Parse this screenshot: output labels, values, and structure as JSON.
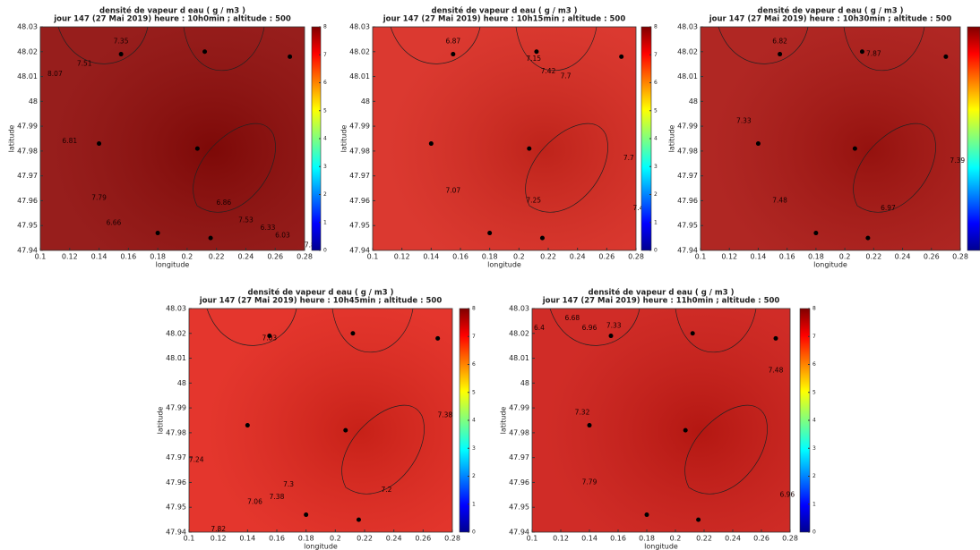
{
  "chart_data": [
    {
      "type": "contour",
      "title": "densité de vapeur d eau ( g / m3 )",
      "subtitle": "jour 147 (27 Mai 2019) heure : 10h0min ; altitude : 500",
      "x_label": "longitude",
      "y_label": "latitude",
      "xlim": [
        0.1,
        0.28
      ],
      "ylim": [
        47.94,
        48.03
      ],
      "xticks": [
        0.1,
        0.12,
        0.14,
        0.16,
        0.18,
        0.2,
        0.22,
        0.24,
        0.26,
        0.28
      ],
      "yticks": [
        47.94,
        47.95,
        47.96,
        47.97,
        47.98,
        47.99,
        48,
        48.01,
        48.02,
        48.03
      ],
      "clim": [
        0,
        8
      ],
      "cticks": [
        0,
        1,
        2,
        3,
        4,
        5,
        6,
        7,
        8
      ],
      "color": "#8e0a08",
      "points": {
        "x": [
          0.155,
          0.212,
          0.27,
          0.14,
          0.207,
          0.18,
          0.216
        ],
        "y": [
          48.019,
          48.02,
          48.018,
          47.983,
          47.981,
          47.947,
          47.945
        ]
      },
      "contour_labels": [
        {
          "label": "7.35",
          "x": 0.155,
          "y": 48.024
        },
        {
          "label": "7.51",
          "x": 0.13,
          "y": 48.015
        },
        {
          "label": "8.07",
          "x": 0.11,
          "y": 48.011
        },
        {
          "label": "6.81",
          "x": 0.12,
          "y": 47.984
        },
        {
          "label": "7.79",
          "x": 0.14,
          "y": 47.961
        },
        {
          "label": "6.66",
          "x": 0.15,
          "y": 47.951
        },
        {
          "label": "6.86",
          "x": 0.225,
          "y": 47.959
        },
        {
          "label": "7.53",
          "x": 0.24,
          "y": 47.952
        },
        {
          "label": "6.33",
          "x": 0.255,
          "y": 47.949
        },
        {
          "label": "6.03",
          "x": 0.265,
          "y": 47.946
        },
        {
          "label": "7.81",
          "x": 0.285,
          "y": 47.942
        }
      ]
    },
    {
      "type": "contour",
      "title": "densité de vapeur d eau ( g / m3 )",
      "subtitle": "jour 147 (27 Mai 2019) heure : 10h15min ; altitude : 500",
      "x_label": "longitude",
      "y_label": "latitude",
      "xlim": [
        0.1,
        0.28
      ],
      "ylim": [
        47.94,
        48.03
      ],
      "xticks": [
        0.1,
        0.12,
        0.14,
        0.16,
        0.18,
        0.2,
        0.22,
        0.24,
        0.26,
        0.28
      ],
      "yticks": [
        47.94,
        47.95,
        47.96,
        47.97,
        47.98,
        47.99,
        48,
        48.01,
        48.02,
        48.03
      ],
      "clim": [
        0,
        8
      ],
      "cticks": [
        0,
        1,
        2,
        3,
        4,
        5,
        6,
        7,
        8
      ],
      "color": "#d8281e",
      "points": {
        "x": [
          0.155,
          0.212,
          0.27,
          0.14,
          0.207,
          0.18,
          0.216
        ],
        "y": [
          48.019,
          48.02,
          48.018,
          47.983,
          47.981,
          47.947,
          47.945
        ]
      },
      "contour_labels": [
        {
          "label": "6.87",
          "x": 0.155,
          "y": 48.024
        },
        {
          "label": "7.15",
          "x": 0.21,
          "y": 48.017
        },
        {
          "label": "7.42",
          "x": 0.22,
          "y": 48.012
        },
        {
          "label": "7.7",
          "x": 0.232,
          "y": 48.01
        },
        {
          "label": "7.7",
          "x": 0.275,
          "y": 47.977
        },
        {
          "label": "7.07",
          "x": 0.155,
          "y": 47.964
        },
        {
          "label": "7.25",
          "x": 0.21,
          "y": 47.96
        },
        {
          "label": "7.42",
          "x": 0.283,
          "y": 47.957
        }
      ]
    },
    {
      "type": "contour",
      "title": "densité de vapeur d eau ( g / m3 )",
      "subtitle": "jour 147 (27 Mai 2019) heure : 10h30min ; altitude : 500",
      "x_label": "longitude",
      "y_label": "latitude",
      "xlim": [
        0.1,
        0.28
      ],
      "ylim": [
        47.94,
        48.03
      ],
      "xticks": [
        0.1,
        0.12,
        0.14,
        0.16,
        0.18,
        0.2,
        0.22,
        0.24,
        0.26,
        0.28
      ],
      "yticks": [
        47.94,
        47.95,
        47.96,
        47.97,
        47.98,
        47.99,
        48,
        48.01,
        48.02,
        48.03
      ],
      "clim": [
        0,
        8
      ],
      "color": "#a91410",
      "points": {
        "x": [
          0.155,
          0.212,
          0.27,
          0.14,
          0.207,
          0.18,
          0.216
        ],
        "y": [
          48.019,
          48.02,
          48.018,
          47.983,
          47.981,
          47.947,
          47.945
        ]
      },
      "contour_labels": [
        {
          "label": "6.82",
          "x": 0.155,
          "y": 48.024
        },
        {
          "label": "7.87",
          "x": 0.22,
          "y": 48.019
        },
        {
          "label": "7.33",
          "x": 0.13,
          "y": 47.992
        },
        {
          "label": "7.39",
          "x": 0.278,
          "y": 47.976
        },
        {
          "label": "7.48",
          "x": 0.155,
          "y": 47.96
        },
        {
          "label": "6.97",
          "x": 0.23,
          "y": 47.957
        }
      ]
    },
    {
      "type": "contour",
      "title": "densité de vapeur d eau ( g / m3 )",
      "subtitle": "jour 147 (27 Mai 2019) heure : 10h45min ; altitude : 500",
      "x_label": "longitude",
      "y_label": "latitude",
      "xlim": [
        0.1,
        0.28
      ],
      "ylim": [
        47.94,
        48.03
      ],
      "xticks": [
        0.1,
        0.12,
        0.14,
        0.16,
        0.18,
        0.2,
        0.22,
        0.24,
        0.26,
        0.28
      ],
      "yticks": [
        47.94,
        47.95,
        47.96,
        47.97,
        47.98,
        47.99,
        48,
        48.01,
        48.02,
        48.03
      ],
      "clim": [
        0,
        8
      ],
      "cticks": [
        0,
        1,
        2,
        3,
        4,
        5,
        6,
        7,
        8
      ],
      "color": "#e2251b",
      "points": {
        "x": [
          0.155,
          0.212,
          0.27,
          0.14,
          0.207,
          0.18,
          0.216
        ],
        "y": [
          48.019,
          48.02,
          48.018,
          47.983,
          47.981,
          47.947,
          47.945
        ]
      },
      "contour_labels": [
        {
          "label": "7.03",
          "x": 0.155,
          "y": 48.018
        },
        {
          "label": "7.38",
          "x": 0.275,
          "y": 47.987
        },
        {
          "label": "7.24",
          "x": 0.105,
          "y": 47.969
        },
        {
          "label": "7.3",
          "x": 0.168,
          "y": 47.959
        },
        {
          "label": "7.38",
          "x": 0.16,
          "y": 47.954
        },
        {
          "label": "7.06",
          "x": 0.145,
          "y": 47.952
        },
        {
          "label": "7.2",
          "x": 0.235,
          "y": 47.957
        },
        {
          "label": "7.82",
          "x": 0.12,
          "y": 47.941
        }
      ]
    },
    {
      "type": "contour",
      "title": "densité de vapeur d eau ( g / m3 )",
      "subtitle": "jour 147 (27 Mai 2019) heure : 11h0min ; altitude : 500",
      "x_label": "longitude",
      "y_label": "latitude",
      "xlim": [
        0.1,
        0.28
      ],
      "ylim": [
        47.94,
        48.03
      ],
      "xticks": [
        0.1,
        0.12,
        0.14,
        0.16,
        0.18,
        0.2,
        0.22,
        0.24,
        0.26,
        0.28
      ],
      "yticks": [
        47.94,
        47.95,
        47.96,
        47.97,
        47.98,
        47.99,
        48,
        48.01,
        48.02,
        48.03
      ],
      "clim": [
        0,
        8
      ],
      "cticks": [
        0,
        1,
        2,
        3,
        4,
        5,
        6,
        7,
        8
      ],
      "color": "#cc1a14",
      "points": {
        "x": [
          0.155,
          0.212,
          0.27,
          0.14,
          0.207,
          0.18,
          0.216
        ],
        "y": [
          48.019,
          48.02,
          48.018,
          47.983,
          47.981,
          47.947,
          47.945
        ]
      },
      "contour_labels": [
        {
          "label": "6.4",
          "x": 0.105,
          "y": 48.022
        },
        {
          "label": "6.68",
          "x": 0.128,
          "y": 48.026
        },
        {
          "label": "6.96",
          "x": 0.14,
          "y": 48.022
        },
        {
          "label": "7.33",
          "x": 0.157,
          "y": 48.023
        },
        {
          "label": "7.48",
          "x": 0.27,
          "y": 48.005
        },
        {
          "label": "7.32",
          "x": 0.135,
          "y": 47.988
        },
        {
          "label": "7.79",
          "x": 0.14,
          "y": 47.96
        },
        {
          "label": "6.96",
          "x": 0.278,
          "y": 47.955
        }
      ]
    }
  ]
}
